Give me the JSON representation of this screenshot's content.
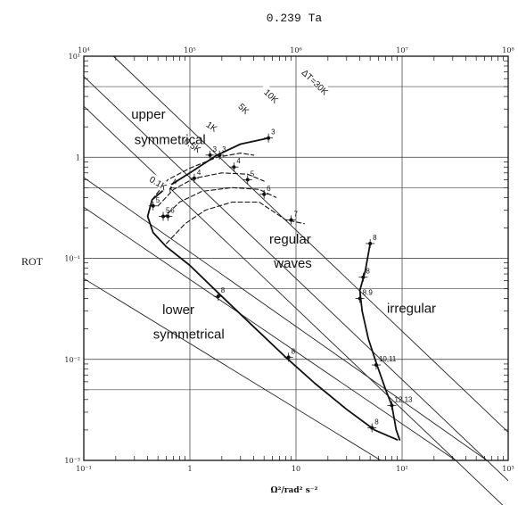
{
  "chart_data": {
    "type": "line",
    "title": "",
    "top_axis_label": "0.239 Ta",
    "ylabel": "ROT",
    "xlabel": "Ω²/rad² s⁻²",
    "xscale": "log",
    "yscale": "log",
    "xlim": [
      0.1,
      1000
    ],
    "ylim": [
      0.001,
      10
    ],
    "top_xlim": [
      10000,
      100000000
    ],
    "grid": true,
    "x_ticks": [
      {
        "value": 0.1,
        "label": "10⁻¹"
      },
      {
        "value": 1,
        "label": "1"
      },
      {
        "value": 10,
        "label": "10"
      },
      {
        "value": 100,
        "label": "10²"
      },
      {
        "value": 1000,
        "label": "10³"
      }
    ],
    "top_ticks": [
      {
        "value": 10000,
        "label": "10⁴"
      },
      {
        "value": 100000,
        "label": "10⁵"
      },
      {
        "value": 1000000,
        "label": "10⁶"
      },
      {
        "value": 10000000,
        "label": "10⁷"
      },
      {
        "value": 100000000,
        "label": "10⁸"
      }
    ],
    "y_ticks": [
      {
        "value": 0.001,
        "label": "10⁻³"
      },
      {
        "value": 0.01,
        "label": "10⁻²"
      },
      {
        "value": 0.1,
        "label": "10⁻¹"
      },
      {
        "value": 1,
        "label": "1"
      },
      {
        "value": 10,
        "label": "10¹"
      }
    ],
    "region_labels": [
      {
        "text": "upper",
        "x": 0.28,
        "y": 2.4
      },
      {
        "text": "symmetrical",
        "x": 0.3,
        "y": 1.35
      },
      {
        "text": "regular",
        "x": 5.6,
        "y": 0.14
      },
      {
        "text": "waves",
        "x": 6.2,
        "y": 0.081
      },
      {
        "text": "irregular",
        "x": 72,
        "y": 0.029
      },
      {
        "text": "lower",
        "x": 0.55,
        "y": 0.028
      },
      {
        "text": "symmetrical",
        "x": 0.45,
        "y": 0.016
      }
    ],
    "isotherms": [
      {
        "label": "ΔT=30K",
        "x0": 0.19,
        "y0": 10,
        "x1": 1000,
        "y1": 0.0019,
        "lx": 15,
        "ly": 5.5
      },
      {
        "label": "10K",
        "x0": 0.1,
        "y0": 6.3,
        "x1": 1000,
        "y1": 0.00063,
        "lx": 5.8,
        "ly": 4.0
      },
      {
        "label": "5K",
        "x0": 0.1,
        "y0": 3.2,
        "x1": 1000,
        "y1": 0.00032,
        "lx": 3.2,
        "ly": 3.0
      },
      {
        "label": "1K",
        "x0": 0.1,
        "y0": 0.63,
        "x1": 630,
        "y1": 0.001,
        "lx": 1.6,
        "ly": 2.0
      },
      {
        "label": "0.5K",
        "x0": 0.1,
        "y0": 0.32,
        "x1": 320,
        "y1": 0.001,
        "lx": 1.05,
        "ly": 1.3
      },
      {
        "label": "0.1K",
        "x0": 0.1,
        "y0": 0.063,
        "x1": 63,
        "y1": 0.001,
        "lx": 0.5,
        "ly": 0.55
      }
    ],
    "series": [
      {
        "style": "solid",
        "points": [
          [
            5.5,
            1.55
          ],
          [
            3.0,
            1.35
          ],
          [
            1.8,
            1.05
          ],
          [
            1.0,
            0.7
          ],
          [
            0.6,
            0.5
          ],
          [
            0.44,
            0.38
          ],
          [
            0.4,
            0.26
          ],
          [
            0.45,
            0.18
          ],
          [
            0.6,
            0.13
          ],
          [
            1.0,
            0.085
          ],
          [
            2.0,
            0.042
          ],
          [
            4.0,
            0.021
          ],
          [
            8.0,
            0.0105
          ],
          [
            15.0,
            0.0058
          ],
          [
            30.0,
            0.0032
          ],
          [
            55.0,
            0.002
          ],
          [
            90.0,
            0.0016
          ]
        ]
      },
      {
        "style": "solid",
        "points": [
          [
            50,
            0.14
          ],
          [
            45,
            0.075
          ],
          [
            40,
            0.048
          ],
          [
            42,
            0.03
          ],
          [
            48,
            0.016
          ],
          [
            58,
            0.0088
          ],
          [
            70,
            0.005
          ],
          [
            80,
            0.0035
          ],
          [
            88,
            0.002
          ],
          [
            95,
            0.0016
          ]
        ]
      },
      {
        "style": "dashed",
        "points": [
          [
            0.44,
            0.38
          ],
          [
            0.62,
            0.6
          ],
          [
            1.0,
            0.78
          ],
          [
            1.8,
            1.0
          ],
          [
            3.0,
            1.1
          ],
          [
            4.0,
            1.05
          ]
        ]
      },
      {
        "style": "dashed",
        "points": [
          [
            0.5,
            0.33
          ],
          [
            0.7,
            0.48
          ],
          [
            1.1,
            0.62
          ],
          [
            2.0,
            0.7
          ],
          [
            3.5,
            0.68
          ],
          [
            5.0,
            0.58
          ]
        ]
      },
      {
        "style": "dashed",
        "points": [
          [
            0.56,
            0.25
          ],
          [
            0.8,
            0.36
          ],
          [
            1.3,
            0.46
          ],
          [
            2.5,
            0.5
          ],
          [
            4.5,
            0.48
          ],
          [
            6.5,
            0.4
          ]
        ]
      },
      {
        "style": "dashed",
        "points": [
          [
            0.6,
            0.14
          ],
          [
            0.9,
            0.22
          ],
          [
            1.4,
            0.3
          ],
          [
            2.5,
            0.36
          ],
          [
            4.5,
            0.36
          ],
          [
            8.0,
            0.24
          ],
          [
            12.0,
            0.22
          ]
        ]
      }
    ],
    "labeled_points": [
      {
        "label": "3",
        "x": 5.5,
        "y": 1.55
      },
      {
        "label": "3",
        "x": 1.9,
        "y": 1.05
      },
      {
        "label": "3",
        "x": 1.55,
        "y": 1.05
      },
      {
        "label": "4",
        "x": 2.6,
        "y": 0.8
      },
      {
        "label": "4",
        "x": 1.1,
        "y": 0.62
      },
      {
        "label": "4",
        "x": 0.65,
        "y": 0.5
      },
      {
        "label": "5",
        "x": 3.5,
        "y": 0.6
      },
      {
        "label": "5",
        "x": 0.45,
        "y": 0.33
      },
      {
        "label": "5",
        "x": 0.56,
        "y": 0.26
      },
      {
        "label": "6",
        "x": 5.0,
        "y": 0.43
      },
      {
        "label": "6",
        "x": 0.62,
        "y": 0.26
      },
      {
        "label": "7",
        "x": 9.0,
        "y": 0.24
      },
      {
        "label": "8",
        "x": 1.85,
        "y": 0.042
      },
      {
        "label": "8",
        "x": 8.5,
        "y": 0.0105
      },
      {
        "label": "8",
        "x": 50,
        "y": 0.14
      },
      {
        "label": "8",
        "x": 43,
        "y": 0.065
      },
      {
        "label": "8",
        "x": 52,
        "y": 0.0021
      },
      {
        "label": "8.9",
        "x": 40,
        "y": 0.04
      },
      {
        "label": "10,11",
        "x": 57,
        "y": 0.0088
      },
      {
        "label": "12,13",
        "x": 80,
        "y": 0.0035
      }
    ]
  }
}
